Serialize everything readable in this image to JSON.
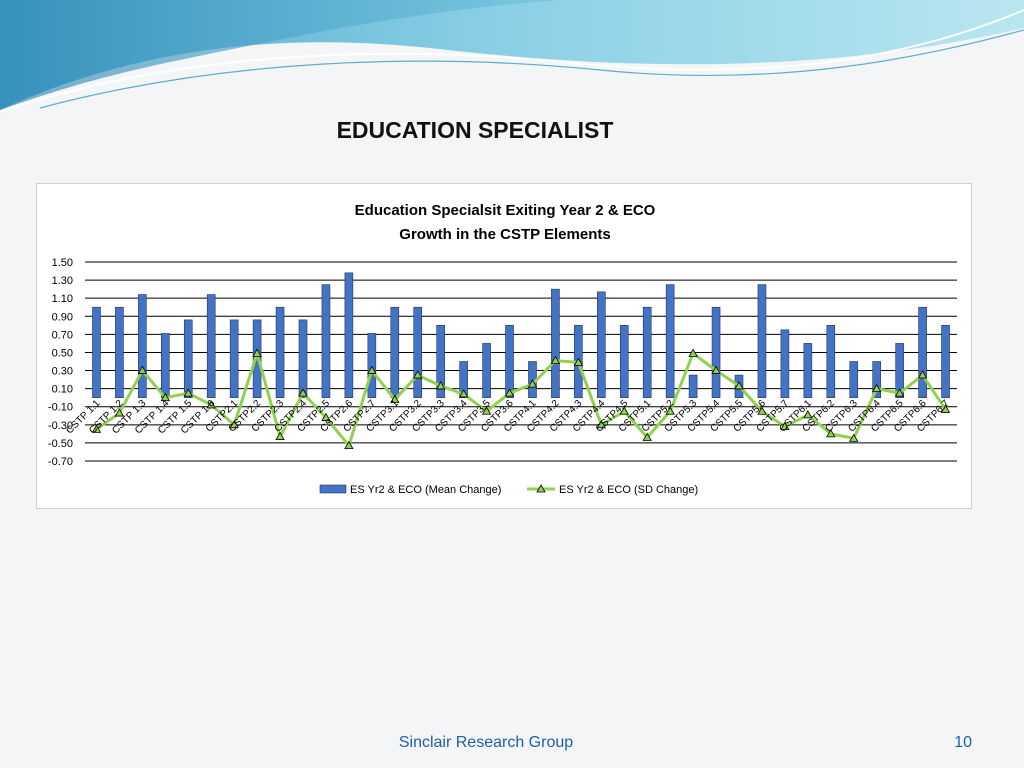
{
  "slide": {
    "title": "EDUCATION SPECIALIST",
    "footer": "Sinclair Research Group",
    "page_number": "10"
  },
  "colors": {
    "bar_fill": "#4472c4",
    "bar_stroke": "#1f3864",
    "line": "#92d050",
    "marker_fill": "#92d050",
    "marker_stroke": "#000000",
    "gridline": "#000000",
    "footer": "#1f5fa8"
  },
  "chart_data": {
    "type": "bar",
    "title_lines": [
      "Education Specialsit Exiting Year 2 & ECO",
      "Growth in the CSTP Elements"
    ],
    "categories": [
      "CSTP 1.1",
      "CSTP 1.2",
      "CSTP 1.3",
      "CSTP 1.4",
      "CSTP 1.5",
      "CSTP 1.6",
      "CSTP2.1",
      "CSTP2.2",
      "CSTP2.3",
      "CSTP2.4",
      "CSTP2.5",
      "CSTP2.6",
      "CSTP2.7",
      "CSTP3.1",
      "CSTP3.2",
      "CSTP3.3",
      "CSTP3.4",
      "CSTP3.5",
      "CSTP3.6",
      "CSTP4.1",
      "CSTP4.2",
      "CSTP4.3",
      "CSTP4.4",
      "CSTP4.5",
      "CSTP5.1",
      "CSTP5.2",
      "CSTP5.3",
      "CSTP5.4",
      "CSTP5.5",
      "CSTP5.6",
      "CSTP5.7",
      "CSTP6.1",
      "CSTP6.2",
      "CSTP6.3",
      "CSTP6.4",
      "CSTP6.5",
      "CSTP6.6",
      "CSTP6.7"
    ],
    "series": [
      {
        "name": "ES Yr2 & ECO (Mean Change)",
        "kind": "bar",
        "values": [
          1.0,
          1.0,
          1.14,
          0.71,
          0.86,
          1.14,
          0.86,
          0.86,
          1.0,
          0.86,
          1.25,
          1.38,
          0.71,
          1.0,
          1.0,
          0.8,
          0.4,
          0.6,
          0.8,
          0.4,
          1.2,
          0.8,
          1.17,
          0.8,
          1.0,
          1.25,
          0.25,
          1.0,
          0.25,
          1.25,
          0.75,
          0.6,
          0.8,
          0.4,
          0.4,
          0.6,
          1.0,
          0.8
        ]
      },
      {
        "name": "ES Yr2 & ECO (SD Change)",
        "kind": "line",
        "values": [
          -0.35,
          -0.17,
          0.3,
          0.0,
          0.05,
          -0.08,
          -0.3,
          0.49,
          -0.43,
          0.05,
          -0.22,
          -0.53,
          0.3,
          -0.02,
          0.25,
          0.13,
          0.04,
          -0.15,
          0.05,
          0.15,
          0.41,
          0.39,
          -0.3,
          -0.15,
          -0.44,
          -0.15,
          0.49,
          0.3,
          0.13,
          -0.15,
          -0.32,
          -0.19,
          -0.4,
          -0.45,
          0.1,
          0.05,
          0.25,
          -0.13
        ]
      }
    ],
    "y_ticks": [
      "1.50",
      "1.30",
      "1.10",
      "0.90",
      "0.70",
      "0.50",
      "0.30",
      "0.10",
      "-0.10",
      "-0.30",
      "-0.50",
      "-0.70"
    ],
    "ylim": [
      -0.7,
      1.5
    ],
    "grid": true,
    "legend_position": "bottom"
  }
}
